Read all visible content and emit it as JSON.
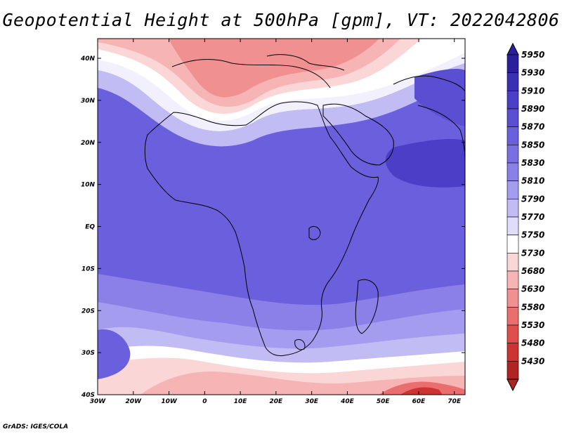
{
  "title": "Geopotential Height at 500hPa [gpm], VT: 2022042806",
  "credit": "GrADS: IGES/COLA",
  "map": {
    "lon_ticks": [
      "30W",
      "20W",
      "10W",
      "0",
      "10E",
      "20E",
      "30E",
      "40E",
      "50E",
      "60E",
      "70E"
    ],
    "lat_ticks": [
      "40N",
      "30N",
      "20N",
      "10N",
      "EQ",
      "10S",
      "20S",
      "30S",
      "40S"
    ]
  },
  "colorbar": {
    "levels": [
      "5950",
      "5930",
      "5910",
      "5890",
      "5870",
      "5850",
      "5830",
      "5810",
      "5790",
      "5770",
      "5750",
      "5730",
      "5680",
      "5630",
      "5580",
      "5530",
      "5480",
      "5430"
    ],
    "colors": [
      "#2b1f9e",
      "#3a30b4",
      "#4a3fc6",
      "#5a4fd2",
      "#6a5fdc",
      "#7a6fe2",
      "#8a80e8",
      "#a49cee",
      "#c2bcf4",
      "#e0ddfa",
      "#ffffff",
      "#fbd6d6",
      "#f6b4b4",
      "#f09090",
      "#ea6e6e",
      "#e04d4d",
      "#cc3333",
      "#b02424"
    ]
  }
}
